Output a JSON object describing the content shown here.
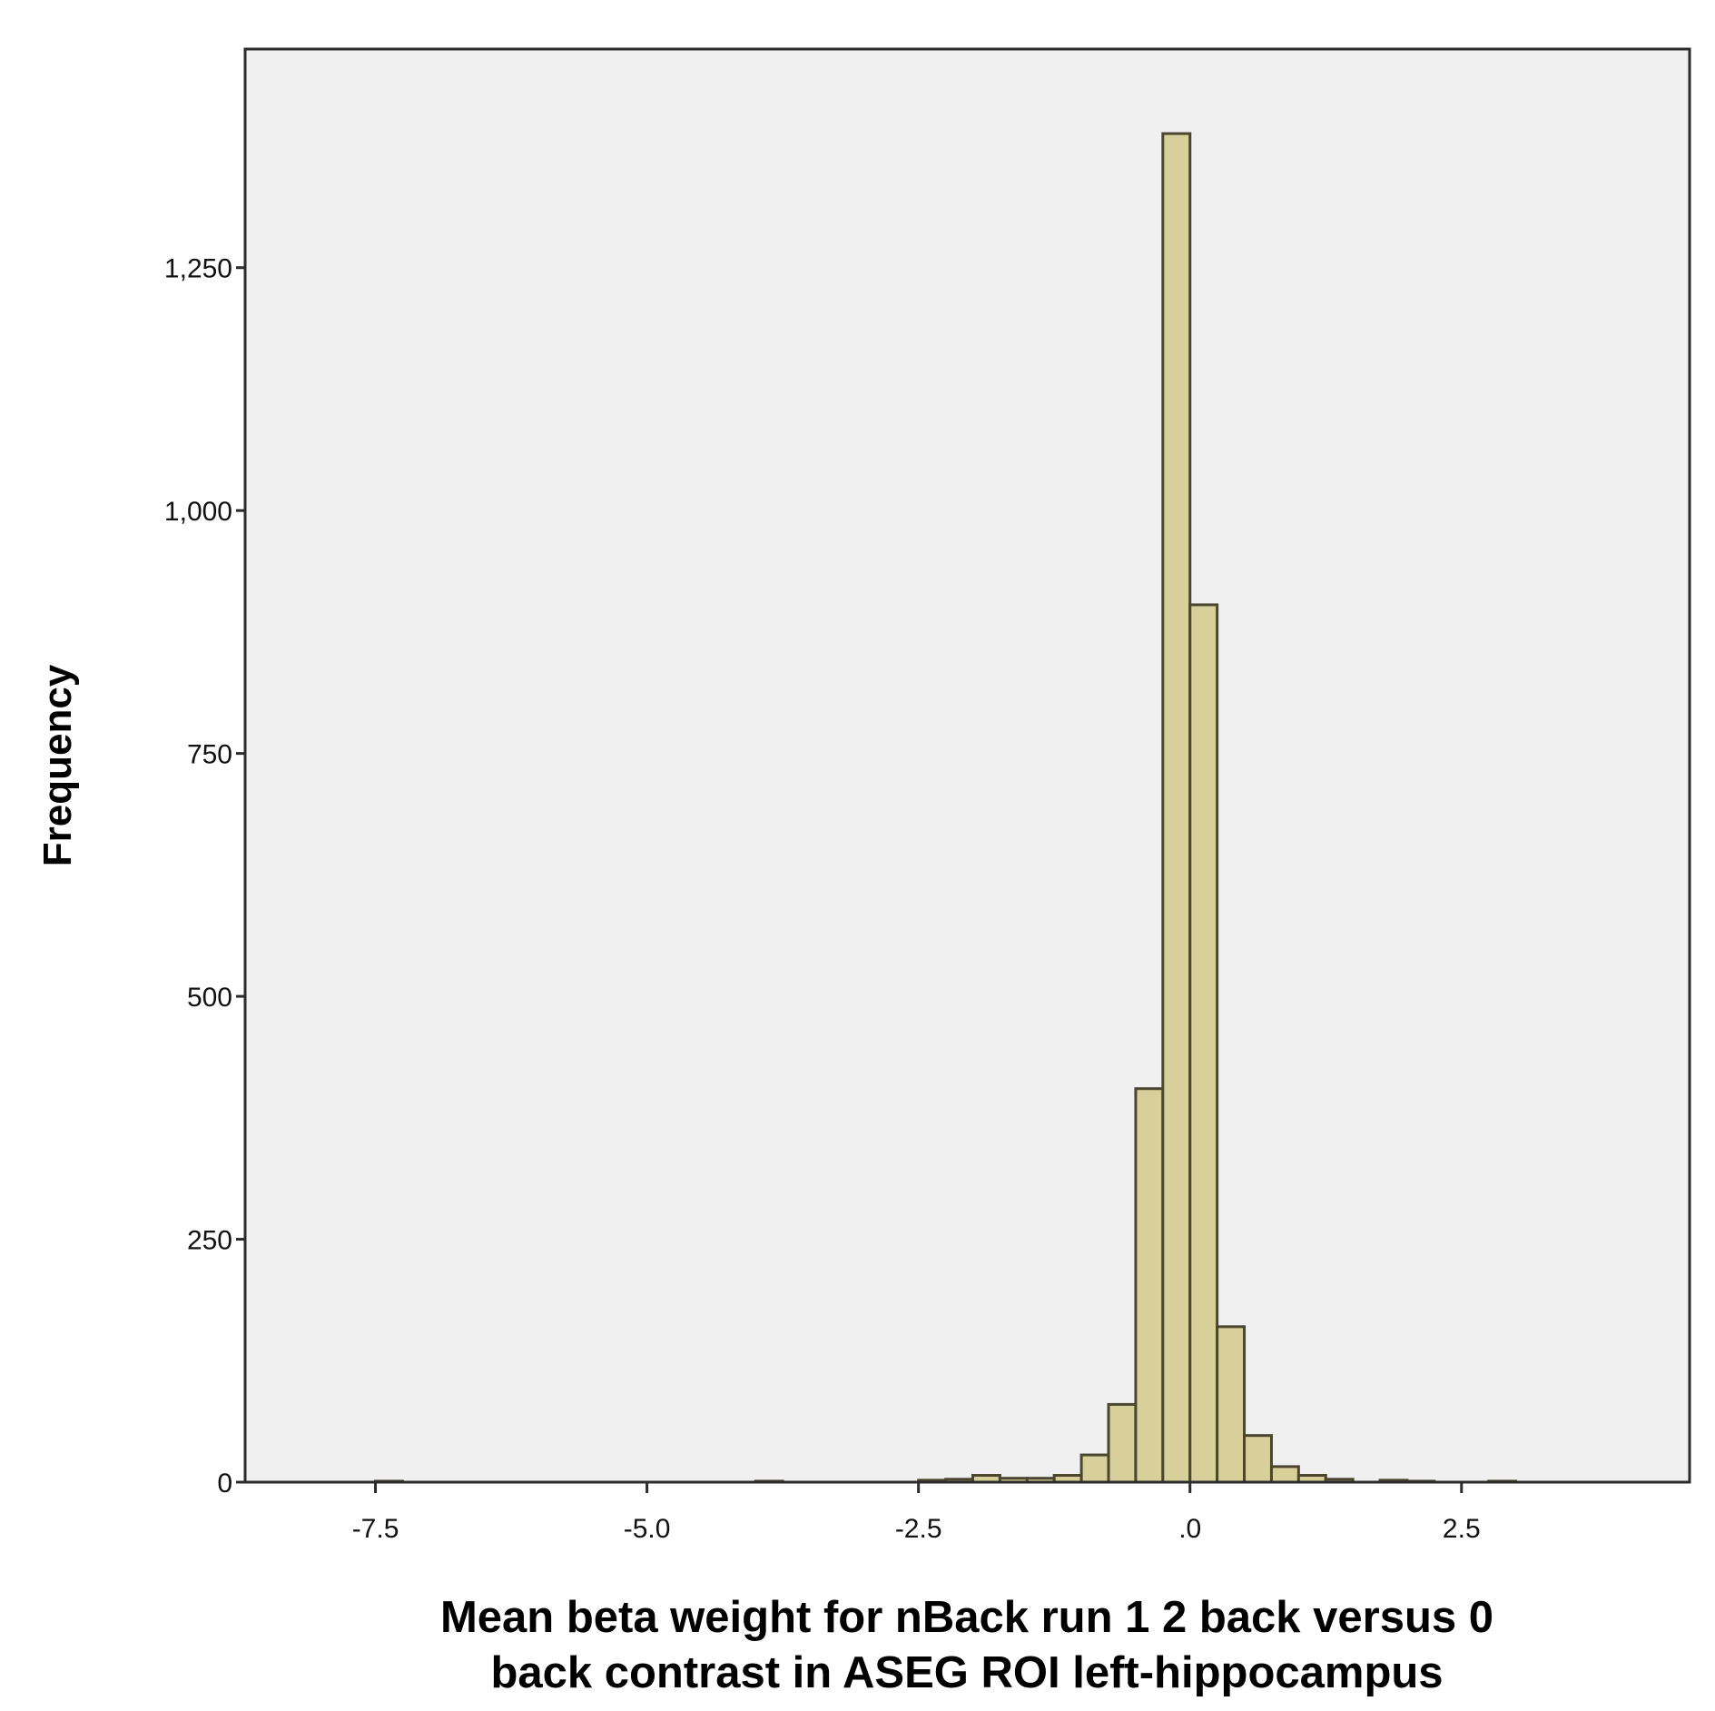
{
  "chart_data": {
    "type": "bar",
    "subtype": "histogram",
    "title": "",
    "xlabel": "Mean beta weight for nBack run 1 2 back versus 0 back contrast in ASEG ROI left-hippocampus",
    "xlabel_lines": [
      "Mean beta weight for nBack run 1 2 back versus 0",
      "back contrast in ASEG ROI left-hippocampus"
    ],
    "ylabel": "Frequency",
    "xlim": [
      -8.7,
      4.6
    ],
    "ylim": [
      0,
      1475
    ],
    "grid": false,
    "legend": "none",
    "x_ticks": [
      {
        "value": -7.5,
        "label": "-7.5"
      },
      {
        "value": -5.0,
        "label": "-5.0"
      },
      {
        "value": -2.5,
        "label": "-2.5"
      },
      {
        "value": 0.0,
        "label": ".0"
      },
      {
        "value": 2.5,
        "label": "2.5"
      }
    ],
    "y_ticks": [
      {
        "value": 0,
        "label": "0"
      },
      {
        "value": 250,
        "label": "250"
      },
      {
        "value": 500,
        "label": "500"
      },
      {
        "value": 750,
        "label": "750"
      },
      {
        "value": 1000,
        "label": "1,000"
      },
      {
        "value": 1250,
        "label": "1,250"
      }
    ],
    "bin_width": 0.25,
    "bins": [
      {
        "x0": -7.5,
        "x1": -7.25,
        "count": 1
      },
      {
        "x0": -4.0,
        "x1": -3.75,
        "count": 1
      },
      {
        "x0": -2.5,
        "x1": -2.25,
        "count": 2
      },
      {
        "x0": -2.25,
        "x1": -2.0,
        "count": 3
      },
      {
        "x0": -2.0,
        "x1": -1.75,
        "count": 7
      },
      {
        "x0": -1.75,
        "x1": -1.5,
        "count": 4
      },
      {
        "x0": -1.5,
        "x1": -1.25,
        "count": 4
      },
      {
        "x0": -1.25,
        "x1": -1.0,
        "count": 7
      },
      {
        "x0": -1.0,
        "x1": -0.75,
        "count": 28
      },
      {
        "x0": -0.75,
        "x1": -0.5,
        "count": 80
      },
      {
        "x0": -0.5,
        "x1": -0.25,
        "count": 405
      },
      {
        "x0": -0.25,
        "x1": 0.0,
        "count": 1388
      },
      {
        "x0": 0.0,
        "x1": 0.25,
        "count": 903
      },
      {
        "x0": 0.25,
        "x1": 0.5,
        "count": 160
      },
      {
        "x0": 0.5,
        "x1": 0.75,
        "count": 48
      },
      {
        "x0": 0.75,
        "x1": 1.0,
        "count": 16
      },
      {
        "x0": 1.0,
        "x1": 1.25,
        "count": 7
      },
      {
        "x0": 1.25,
        "x1": 1.5,
        "count": 3
      },
      {
        "x0": 1.75,
        "x1": 2.0,
        "count": 2
      },
      {
        "x0": 2.0,
        "x1": 2.25,
        "count": 1
      },
      {
        "x0": 2.75,
        "x1": 3.0,
        "count": 1
      }
    ],
    "colors": {
      "bar_fill": "#d8d09a",
      "bar_stroke": "#4a4630",
      "plot_background": "#f0f0f0",
      "axis": "#2b2b2b"
    }
  }
}
